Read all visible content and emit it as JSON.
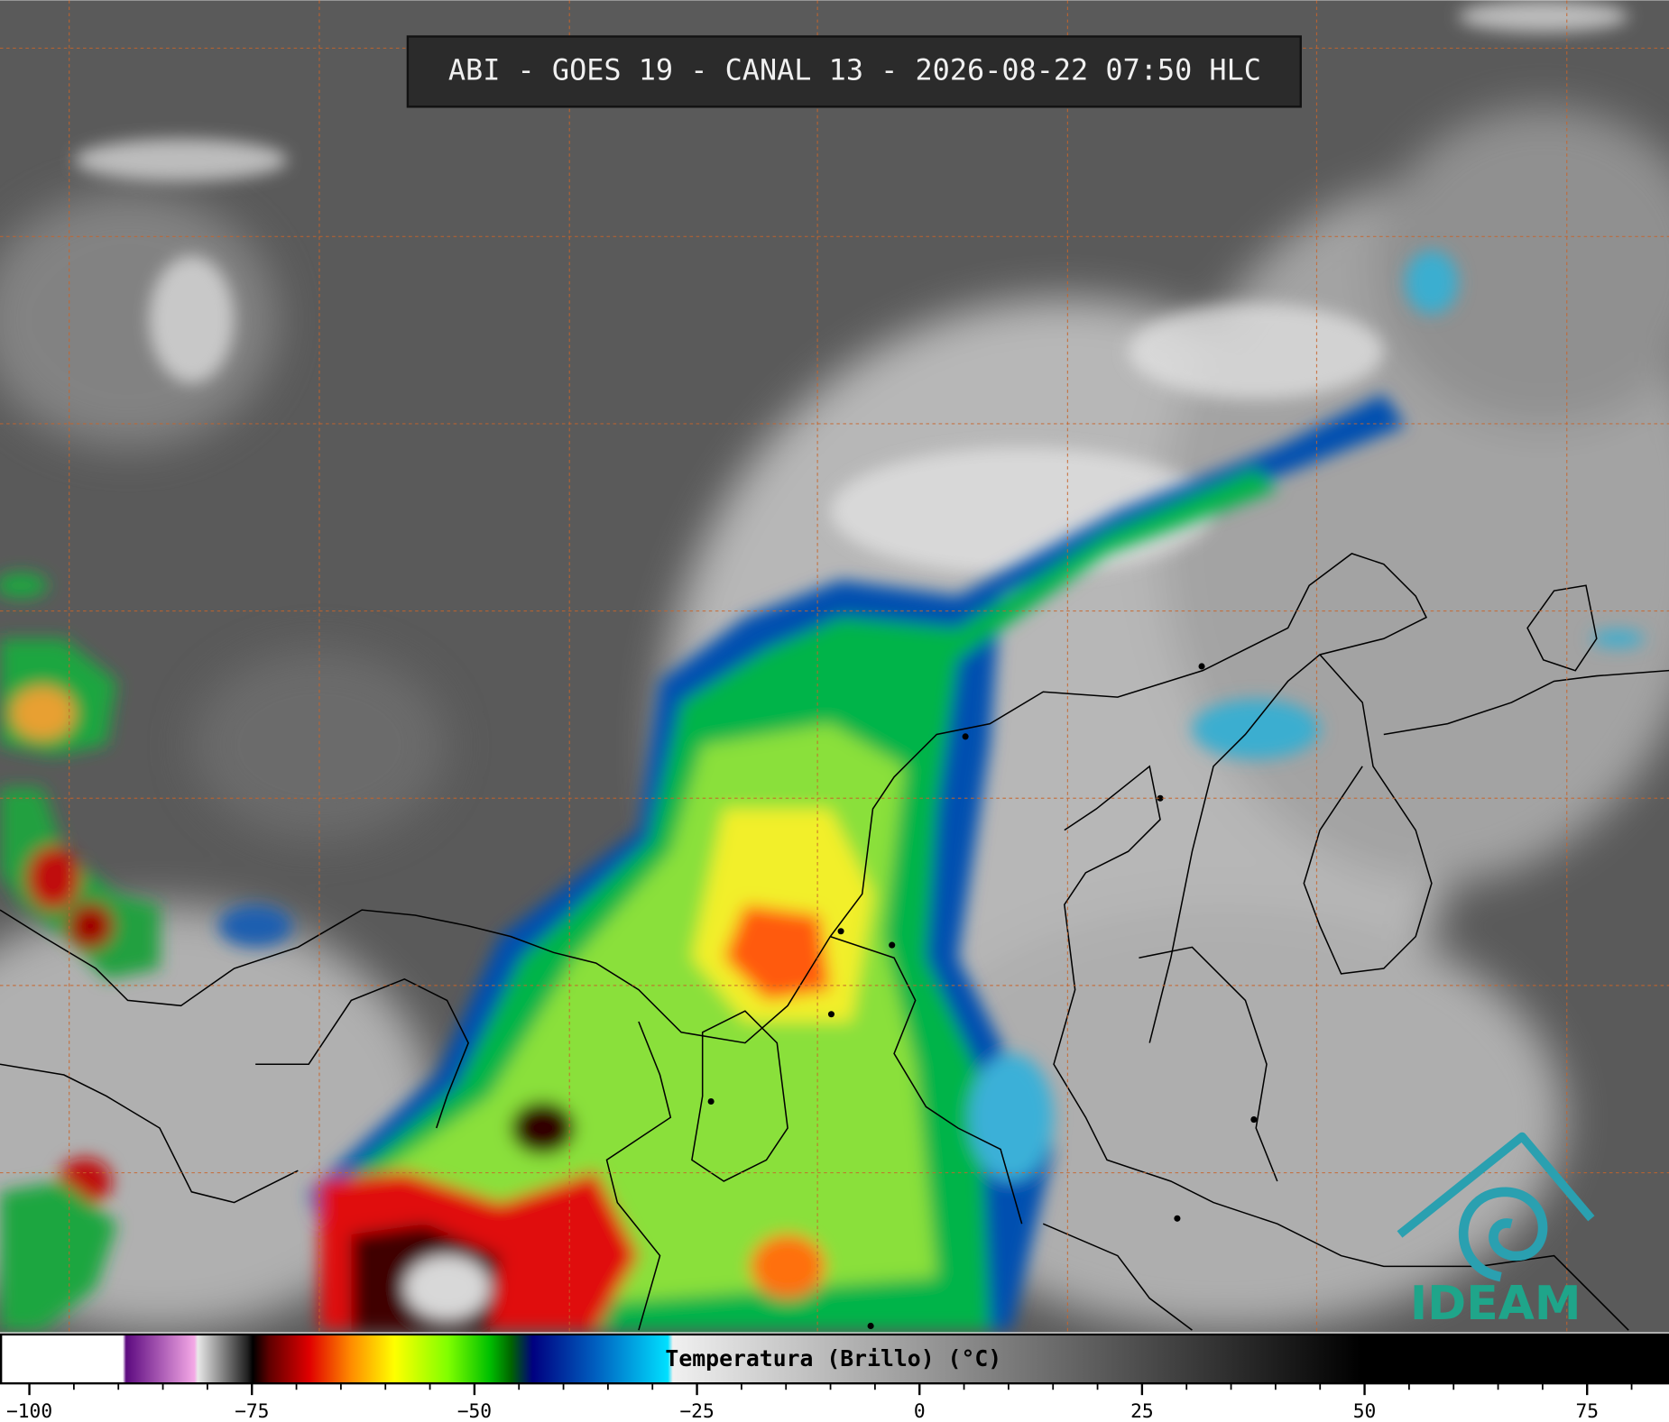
{
  "header": {
    "title": "ABI - GOES 19 - CANAL 13 - 2026-08-22 07:50 HLC"
  },
  "colorbar": {
    "label": "Temperatura (Brillo) (°C)",
    "xlim": [
      -103.3,
      84.2
    ],
    "ticks": [
      {
        "value": -100,
        "label": "−100"
      },
      {
        "value": -75,
        "label": "−75"
      },
      {
        "value": -50,
        "label": "−50"
      },
      {
        "value": -25,
        "label": "−25"
      },
      0,
      25,
      50,
      75
    ],
    "minor_ticks": [
      -100,
      -95,
      -90,
      -85,
      -80,
      -75,
      -70,
      -65,
      -60,
      -55,
      -50,
      -45,
      -40,
      -35,
      -30,
      -25,
      -20,
      -15,
      -10,
      -5,
      0,
      5,
      10,
      15,
      20,
      25,
      30,
      35,
      40,
      45,
      50,
      55,
      60,
      65,
      70,
      75,
      80
    ]
  },
  "logo": {
    "text": "IDEAM"
  }
}
